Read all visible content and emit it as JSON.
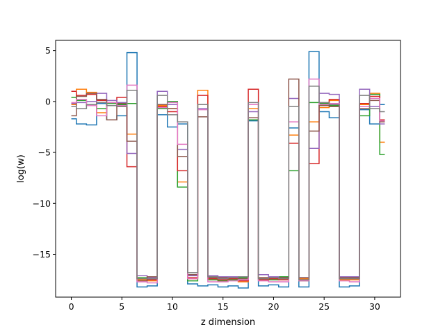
{
  "chart_data": {
    "type": "line",
    "subtype": "step",
    "title": "",
    "xlabel": "z dimension",
    "ylabel": "log(w)",
    "xlim": [
      -1.55,
      32.55
    ],
    "ylim": [
      -19.2,
      6.0
    ],
    "x_ticks": [
      0,
      5,
      10,
      15,
      20,
      25,
      30
    ],
    "y_ticks": [
      5,
      0,
      -5,
      -10,
      -15
    ],
    "y_tick_labels": [
      "5",
      "0",
      "−5",
      "−10",
      "−15"
    ],
    "grid": false,
    "legend": "none",
    "x": [
      0,
      1,
      2,
      3,
      4,
      5,
      6,
      7,
      8,
      9,
      10,
      11,
      12,
      13,
      14,
      15,
      16,
      17,
      18,
      19,
      20,
      21,
      22,
      23,
      24,
      25,
      26,
      27,
      28,
      29,
      30,
      31
    ],
    "series": [
      {
        "color": "#1f77b4",
        "values": [
          -1.7,
          -2.2,
          -2.3,
          -0.2,
          -1.8,
          -1.4,
          4.8,
          -18.2,
          -18.1,
          -1.3,
          -2.5,
          -2.2,
          -17.9,
          -18.1,
          -18.0,
          -18.2,
          -18.1,
          -18.3,
          -1.9,
          -18.1,
          -18.0,
          -18.2,
          -2.6,
          -18.2,
          4.9,
          -1.0,
          -1.6,
          -18.2,
          -18.1,
          -0.8,
          -2.2,
          -0.3
        ]
      },
      {
        "color": "#ff7f0e",
        "values": [
          -0.3,
          1.2,
          0.9,
          -1.1,
          -0.2,
          -0.5,
          -3.2,
          -17.5,
          -17.6,
          -0.4,
          -0.7,
          -7.9,
          -17.4,
          1.1,
          -17.5,
          -17.6,
          -17.4,
          -17.7,
          -0.7,
          -17.3,
          -17.4,
          -17.4,
          -3.3,
          -17.4,
          -2.0,
          -0.6,
          0.1,
          -17.5,
          -17.5,
          -0.3,
          0.8,
          -4.0
        ]
      },
      {
        "color": "#2ca02c",
        "values": [
          0.4,
          0.1,
          -0.4,
          -0.7,
          -0.2,
          -0.3,
          -0.2,
          -17.3,
          -17.4,
          -0.7,
          0.0,
          -8.4,
          -17.6,
          -0.3,
          -17.5,
          -17.6,
          -17.5,
          -17.3,
          -1.8,
          -17.4,
          -17.5,
          -17.2,
          -6.8,
          -17.6,
          -0.1,
          -0.2,
          -0.4,
          -17.4,
          -17.3,
          -1.4,
          0.7,
          -5.2
        ]
      },
      {
        "color": "#d62728",
        "values": [
          1.0,
          0.6,
          0.7,
          0.1,
          -0.4,
          0.4,
          -6.4,
          -17.4,
          -17.5,
          -0.5,
          -1.0,
          -6.8,
          -17.3,
          0.6,
          -17.4,
          -17.5,
          -17.4,
          -17.6,
          1.2,
          -17.5,
          -17.4,
          -17.5,
          -4.1,
          -17.5,
          -6.1,
          -0.3,
          0.2,
          -17.4,
          -17.4,
          -0.2,
          0.5,
          -1.8
        ]
      },
      {
        "color": "#9467bd",
        "values": [
          -0.2,
          -0.1,
          0.0,
          0.8,
          0.1,
          -0.1,
          -5.1,
          -17.1,
          -17.3,
          1.0,
          -0.3,
          -4.7,
          -17.1,
          -0.7,
          -17.1,
          -17.2,
          -17.2,
          -17.5,
          -1.0,
          -17.0,
          -17.2,
          -17.3,
          0.3,
          -17.3,
          -4.6,
          0.8,
          0.7,
          -17.2,
          -17.2,
          1.2,
          -0.5,
          -2.2
        ]
      },
      {
        "color": "#8c564b",
        "values": [
          -1.4,
          0.5,
          0.8,
          0.2,
          -1.8,
          -0.2,
          -3.9,
          -17.6,
          -17.2,
          -0.3,
          -0.7,
          -5.4,
          -17.0,
          -1.5,
          -17.3,
          -17.3,
          -17.3,
          -17.4,
          -1.6,
          -17.3,
          -17.3,
          -17.3,
          2.2,
          -17.3,
          -2.9,
          -0.4,
          -0.5,
          -17.3,
          -17.3,
          -0.7,
          0.1,
          -2.0
        ]
      },
      {
        "color": "#e377c2",
        "values": [
          -0.1,
          0.2,
          -0.4,
          -1.4,
          -0.1,
          -0.4,
          1.6,
          -17.7,
          -17.8,
          -0.6,
          -0.1,
          -4.2,
          -17.4,
          -0.8,
          -17.7,
          -17.7,
          -17.6,
          -17.5,
          -0.3,
          -17.6,
          -17.7,
          -17.7,
          -2.0,
          -17.6,
          2.2,
          -0.3,
          -0.2,
          -17.6,
          -17.7,
          -0.5,
          0.3,
          -1.9
        ]
      },
      {
        "color": "#7f7f7f",
        "values": [
          -0.5,
          -0.7,
          -0.3,
          -0.1,
          -0.4,
          -0.5,
          1.1,
          -17.4,
          -17.4,
          0.6,
          -1.3,
          -2.0,
          -16.8,
          -0.3,
          -17.2,
          -17.4,
          -17.3,
          -17.2,
          -0.1,
          -17.4,
          -17.3,
          -17.4,
          -0.5,
          -17.5,
          1.5,
          -0.1,
          -0.3,
          -17.4,
          -17.4,
          0.6,
          -0.7,
          -1.0
        ]
      }
    ]
  }
}
